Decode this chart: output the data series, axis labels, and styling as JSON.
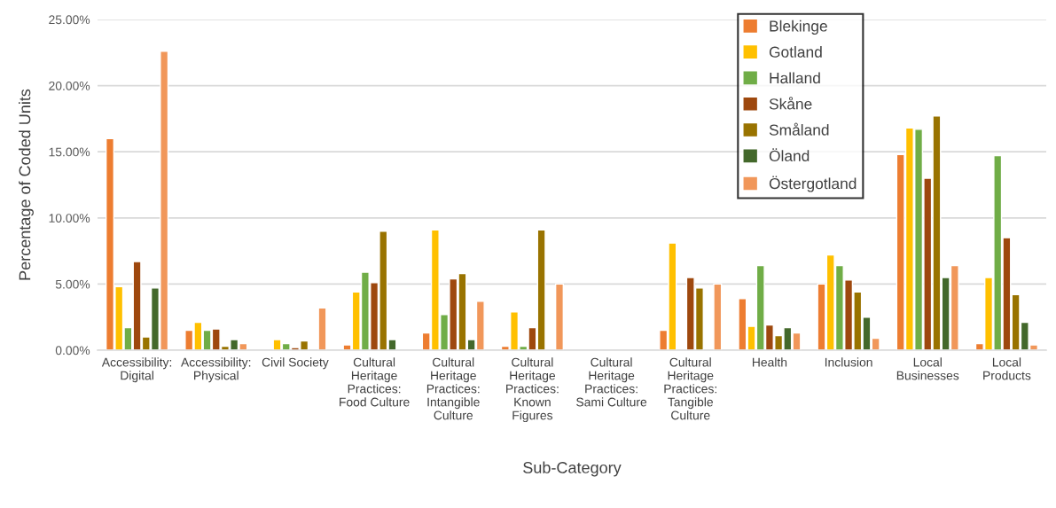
{
  "chart_data": {
    "type": "bar",
    "xlabel": "Sub-Category",
    "ylabel": "Percentage of Coded Units",
    "categories": [
      "Accessibility:\nDigital",
      "Accessibility:\nPhysical",
      "Civil Society",
      "Cultural\nHeritage\nPractices:\nFood Culture",
      "Cultural\nHeritage\nPractices:\nIntangible\nCulture",
      "Cultural\nHeritage\nPractices:\nKnown\nFigures",
      "Cultural\nHeritage\nPractices:\nSami Culture",
      "Cultural\nHeritage\nPractices:\nTangible\nCulture",
      "Health",
      "Inclusion",
      "Local\nBusinesses",
      "Local\nProducts"
    ],
    "series": [
      {
        "name": "Blekinge",
        "color": "#ed7d31",
        "values": [
          16.0,
          1.5,
          null,
          0.4,
          1.3,
          0.3,
          null,
          1.5,
          3.9,
          5.0,
          14.8,
          0.5
        ]
      },
      {
        "name": "Gotland",
        "color": "#ffc000",
        "values": [
          4.8,
          2.1,
          0.8,
          4.4,
          9.1,
          2.9,
          null,
          8.1,
          1.8,
          7.2,
          16.8,
          5.5
        ]
      },
      {
        "name": "Halland",
        "color": "#70ad47",
        "values": [
          1.7,
          1.5,
          0.5,
          5.9,
          2.7,
          0.3,
          null,
          null,
          6.4,
          6.4,
          16.7,
          14.7
        ]
      },
      {
        "name": "Skåne",
        "color": "#9e480e",
        "values": [
          6.7,
          1.6,
          0.2,
          5.1,
          5.4,
          1.7,
          null,
          5.5,
          1.9,
          5.3,
          13.0,
          8.5
        ]
      },
      {
        "name": "Småland",
        "color": "#997300",
        "values": [
          1.0,
          0.3,
          0.7,
          9.0,
          5.8,
          9.1,
          null,
          4.7,
          1.1,
          4.4,
          17.7,
          4.2
        ]
      },
      {
        "name": "Öland",
        "color": "#43682b",
        "values": [
          4.7,
          0.8,
          null,
          0.8,
          0.8,
          null,
          null,
          null,
          1.7,
          2.5,
          5.5,
          2.1
        ]
      },
      {
        "name": "Östergotland",
        "color": "#f1975a",
        "values": [
          22.6,
          0.5,
          3.2,
          null,
          3.7,
          5.0,
          null,
          5.0,
          1.3,
          0.9,
          6.4,
          0.4
        ]
      }
    ],
    "ylim": [
      0,
      25
    ],
    "yticks": [
      {
        "value": 0,
        "label": "0.00%"
      },
      {
        "value": 5,
        "label": "5.00%"
      },
      {
        "value": 10,
        "label": "10.00%"
      },
      {
        "value": 15,
        "label": "15.00%"
      },
      {
        "value": 20,
        "label": "20.00%"
      },
      {
        "value": 25,
        "label": "25.00%"
      }
    ],
    "grid": "y",
    "legend": "top right"
  }
}
